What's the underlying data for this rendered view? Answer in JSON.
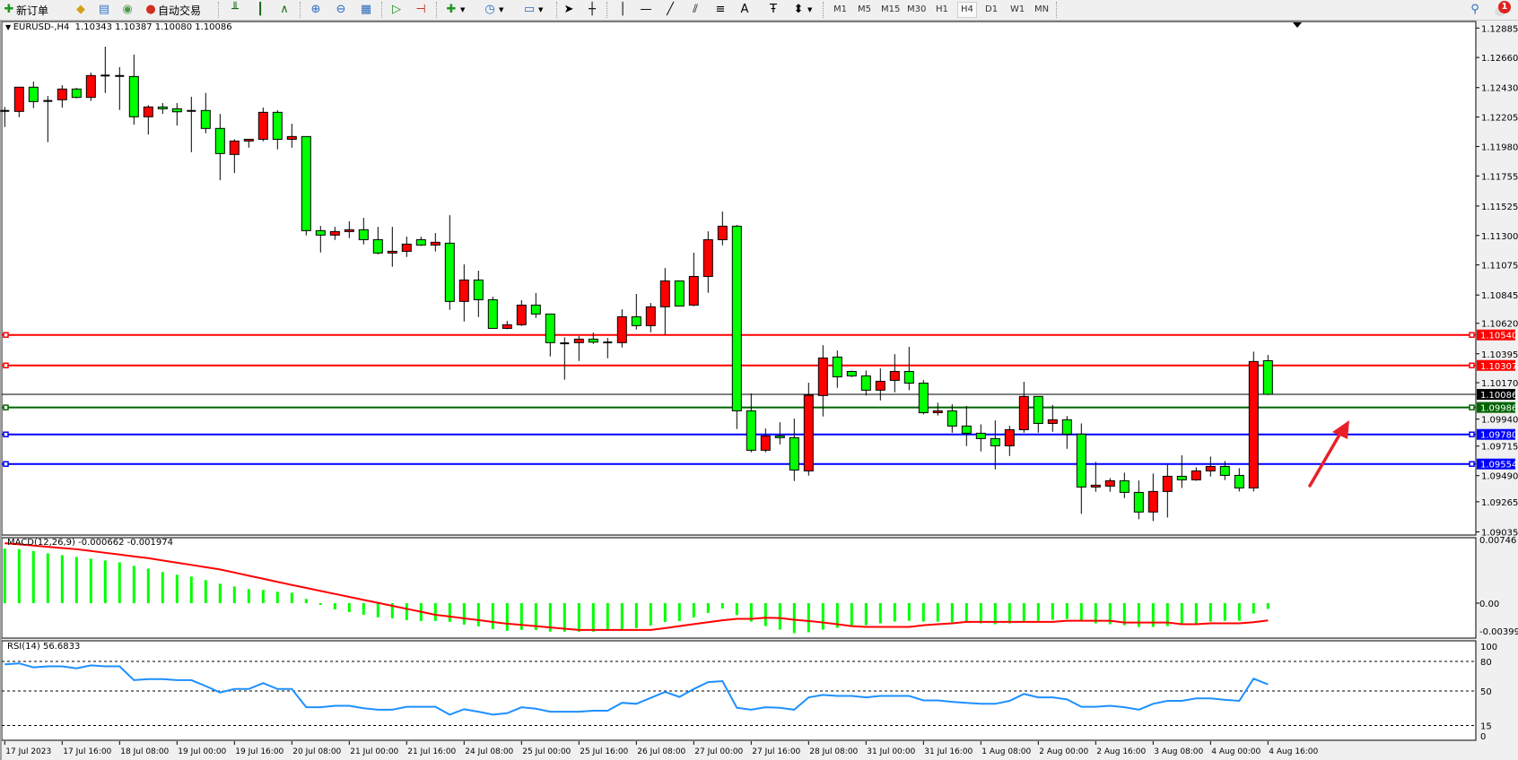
{
  "toolbar": {
    "new_order_label": "新订单",
    "auto_trading_label": "自动交易",
    "timeframes": [
      "M1",
      "M5",
      "M15",
      "M30",
      "H1",
      "H4",
      "D1",
      "W1",
      "MN"
    ],
    "active_timeframe": "H4",
    "notification_count": "1"
  },
  "chart": {
    "symbol_header": "EURUSD-,H4  1.10343 1.10387 1.10080 1.10086",
    "macd_label": "MACD(12,26,9) -0.000662 -0.001974",
    "rsi_label": "RSI(14) 56.6833"
  },
  "colors": {
    "bull_candle": "#ff0000",
    "bear_candle": "#00ff00",
    "macd_histogram": "#00ff00",
    "macd_signal": "#ff0000",
    "rsi_line": "#1e90ff",
    "arrow": "#e8202a"
  },
  "chart_data": [
    {
      "type": "candlestick",
      "ylim": [
        1.09011,
        1.12935
      ],
      "grid": false,
      "price_ticks": [
        "1.12885",
        "1.12660",
        "1.12430",
        "1.12205",
        "1.11980",
        "1.11755",
        "1.11525",
        "1.11300",
        "1.11075",
        "1.10845",
        "1.10620",
        "1.10395",
        "1.10170",
        "1.09940",
        "1.09715",
        "1.09490",
        "1.09265",
        "1.09035"
      ],
      "time_labels": [
        {
          "bar": 0,
          "label": "17 Jul 2023"
        },
        {
          "bar": 4,
          "label": "17 Jul 16:00"
        },
        {
          "bar": 8,
          "label": "18 Jul 08:00"
        },
        {
          "bar": 12,
          "label": "19 Jul 00:00"
        },
        {
          "bar": 16,
          "label": "19 Jul 16:00"
        },
        {
          "bar": 20,
          "label": "20 Jul 08:00"
        },
        {
          "bar": 24,
          "label": "21 Jul 00:00"
        },
        {
          "bar": 28,
          "label": "21 Jul 16:00"
        },
        {
          "bar": 32,
          "label": "24 Jul 08:00"
        },
        {
          "bar": 36,
          "label": "25 Jul 00:00"
        },
        {
          "bar": 40,
          "label": "25 Jul 16:00"
        },
        {
          "bar": 44,
          "label": "26 Jul 08:00"
        },
        {
          "bar": 48,
          "label": "27 Jul 00:00"
        },
        {
          "bar": 52,
          "label": "27 Jul 16:00"
        },
        {
          "bar": 56,
          "label": "28 Jul 08:00"
        },
        {
          "bar": 60,
          "label": "31 Jul 00:00"
        },
        {
          "bar": 64,
          "label": "31 Jul 16:00"
        },
        {
          "bar": 68,
          "label": "1 Aug 08:00"
        },
        {
          "bar": 72,
          "label": "2 Aug 00:00"
        },
        {
          "bar": 76,
          "label": "2 Aug 16:00"
        },
        {
          "bar": 80,
          "label": "3 Aug 08:00"
        },
        {
          "bar": 84,
          "label": "4 Aug 00:00"
        },
        {
          "bar": 88,
          "label": "4 Aug 16:00"
        }
      ],
      "ohlc": [
        [
          1.12252,
          1.12282,
          1.12129,
          1.12252
        ],
        [
          1.12248,
          1.12433,
          1.12204,
          1.12433
        ],
        [
          1.12433,
          1.12476,
          1.12273,
          1.12323
        ],
        [
          1.12328,
          1.12366,
          1.12013,
          1.12328
        ],
        [
          1.12337,
          1.12449,
          1.12277,
          1.12419
        ],
        [
          1.12419,
          1.12428,
          1.12348,
          1.12355
        ],
        [
          1.12355,
          1.12545,
          1.12328,
          1.12522
        ],
        [
          1.12522,
          1.12743,
          1.12389,
          1.12522
        ],
        [
          1.12519,
          1.12586,
          1.12259,
          1.12519
        ],
        [
          1.12515,
          1.12682,
          1.12147,
          1.12207
        ],
        [
          1.12207,
          1.12296,
          1.12072,
          1.12282
        ],
        [
          1.12282,
          1.12312,
          1.12229,
          1.12268
        ],
        [
          1.12268,
          1.12312,
          1.1214,
          1.12245
        ],
        [
          1.12252,
          1.1236,
          1.11937,
          1.12252
        ],
        [
          1.12255,
          1.12389,
          1.12081,
          1.12118
        ],
        [
          1.12118,
          1.12229,
          1.11723,
          1.11926
        ],
        [
          1.11919,
          1.12035,
          1.11777,
          1.12022
        ],
        [
          1.12022,
          1.12035,
          1.11971,
          1.12035
        ],
        [
          1.12035,
          1.12277,
          1.1202,
          1.12241
        ],
        [
          1.12241,
          1.12257,
          1.11958,
          1.12035
        ],
        [
          1.12035,
          1.12154,
          1.11971,
          1.12056
        ],
        [
          1.12056,
          1.12056,
          1.11301,
          1.11337
        ],
        [
          1.11337,
          1.11373,
          1.1117,
          1.11303
        ],
        [
          1.11303,
          1.11366,
          1.11266,
          1.1133
        ],
        [
          1.1133,
          1.11408,
          1.1128,
          1.11344
        ],
        [
          1.11344,
          1.11435,
          1.11232,
          1.11268
        ],
        [
          1.11268,
          1.11366,
          1.11156,
          1.11166
        ],
        [
          1.11166,
          1.11366,
          1.11061,
          1.11179
        ],
        [
          1.11179,
          1.11291,
          1.11136,
          1.11234
        ],
        [
          1.11268,
          1.11291,
          1.1122,
          1.11227
        ],
        [
          1.11227,
          1.11319,
          1.11177,
          1.11248
        ],
        [
          1.11241,
          1.11455,
          1.10732,
          1.10796
        ],
        [
          1.10796,
          1.11079,
          1.10643,
          1.1096
        ],
        [
          1.1096,
          1.11031,
          1.10677,
          1.10809
        ],
        [
          1.10809,
          1.10832,
          1.1059,
          1.1059
        ],
        [
          1.1059,
          1.10647,
          1.10583,
          1.10618
        ],
        [
          1.10618,
          1.10805,
          1.10608,
          1.10768
        ],
        [
          1.10768,
          1.1086,
          1.1067,
          1.107
        ],
        [
          1.107,
          1.107,
          1.10376,
          1.10481
        ],
        [
          1.10476,
          1.10522,
          1.10198,
          1.10476
        ],
        [
          1.10481,
          1.10531,
          1.10341,
          1.10508
        ],
        [
          1.10508,
          1.10558,
          1.10472,
          1.10485
        ],
        [
          1.10483,
          1.10517,
          1.10362,
          1.10483
        ],
        [
          1.10481,
          1.10736,
          1.10444,
          1.10679
        ],
        [
          1.10679,
          1.10853,
          1.10581,
          1.10611
        ],
        [
          1.10611,
          1.10784,
          1.1056,
          1.10755
        ],
        [
          1.10755,
          1.11051,
          1.10542,
          1.10953
        ],
        [
          1.10953,
          1.10953,
          1.10761,
          1.10761
        ],
        [
          1.10768,
          1.11168,
          1.10759,
          1.10987
        ],
        [
          1.10987,
          1.11332,
          1.10862,
          1.11268
        ],
        [
          1.11268,
          1.11483,
          1.11225,
          1.11371
        ],
        [
          1.11371,
          1.1138,
          1.09821,
          1.0996
        ],
        [
          1.0996,
          1.10093,
          1.09643,
          1.09659
        ],
        [
          1.09659,
          1.09825,
          1.09643,
          1.09768
        ],
        [
          1.09768,
          1.09873,
          1.09704,
          1.09755
        ],
        [
          1.09755,
          1.09901,
          1.09424,
          1.09508
        ],
        [
          1.09501,
          1.10175,
          1.09465,
          1.10079
        ],
        [
          1.10077,
          1.10462,
          1.09917,
          1.10364
        ],
        [
          1.10371,
          1.10421,
          1.10136,
          1.1022
        ],
        [
          1.10261,
          1.10268,
          1.10218,
          1.10227
        ],
        [
          1.10227,
          1.10268,
          1.10077,
          1.10118
        ],
        [
          1.10118,
          1.10284,
          1.1004,
          1.10186
        ],
        [
          1.10193,
          1.10393,
          1.10102,
          1.10261
        ],
        [
          1.10261,
          1.10449,
          1.10118,
          1.10172
        ],
        [
          1.10172,
          1.10195,
          1.09933,
          1.09946
        ],
        [
          1.09946,
          1.10022,
          1.09924,
          1.0996
        ],
        [
          1.0996,
          1.1001,
          1.09793,
          1.09844
        ],
        [
          1.09844,
          1.09997,
          1.09691,
          1.09789
        ],
        [
          1.09789,
          1.09857,
          1.0965,
          1.09748
        ],
        [
          1.09748,
          1.09887,
          1.09513,
          1.09693
        ],
        [
          1.09693,
          1.09846,
          1.09615,
          1.09816
        ],
        [
          1.09816,
          1.10182,
          1.09793,
          1.1007
        ],
        [
          1.1007,
          1.1007,
          1.09793,
          1.09864
        ],
        [
          1.09864,
          1.10004,
          1.098,
          1.09892
        ],
        [
          1.09892,
          1.09921,
          1.0967,
          1.09782
        ],
        [
          1.09782,
          1.09864,
          1.09173,
          1.09378
        ],
        [
          1.09378,
          1.0957,
          1.09342,
          1.09392
        ],
        [
          1.09385,
          1.09446,
          1.09342,
          1.09426
        ],
        [
          1.09426,
          1.09488,
          1.09293,
          1.09337
        ],
        [
          1.09337,
          1.09428,
          1.09132,
          1.09187
        ],
        [
          1.09187,
          1.09481,
          1.09118,
          1.09344
        ],
        [
          1.09344,
          1.09547,
          1.09145,
          1.0946
        ],
        [
          1.0946,
          1.0962,
          1.09371,
          1.09433
        ],
        [
          1.09433,
          1.09529,
          1.09426,
          1.09501
        ],
        [
          1.09501,
          1.09611,
          1.09458,
          1.09535
        ],
        [
          1.09535,
          1.09577,
          1.09431,
          1.09467
        ],
        [
          1.09467,
          1.09522,
          1.09344,
          1.09371
        ],
        [
          1.09371,
          1.10412,
          1.09344,
          1.10337
        ],
        [
          1.10343,
          1.10387,
          1.1008,
          1.10086
        ]
      ],
      "levels": [
        {
          "price": 1.1054,
          "label": "1.10540",
          "color": "#ff0000"
        },
        {
          "price": 1.10307,
          "label": "1.10307",
          "color": "#ff0000"
        },
        {
          "price": 1.10086,
          "label": "1.10086",
          "color": "#000000"
        },
        {
          "price": 1.09986,
          "label": "1.09986",
          "color": "#006400"
        },
        {
          "price": 1.0978,
          "label": "1.09780",
          "color": "#0000ff"
        },
        {
          "price": 1.09554,
          "label": "1.09554",
          "color": "#0000ff"
        }
      ]
    },
    {
      "type": "bar+line",
      "name": "MACD(12,26,9)",
      "ylim": [
        -0.003993,
        0.00746
      ],
      "tick_labels": [
        "0.00746",
        "0.00",
        "-0.003993"
      ],
      "histogram": [
        0.00622,
        0.00615,
        0.00595,
        0.00568,
        0.00547,
        0.00527,
        0.00507,
        0.00486,
        0.00466,
        0.00425,
        0.00394,
        0.00354,
        0.00323,
        0.00303,
        0.00262,
        0.00221,
        0.0019,
        0.0016,
        0.0015,
        0.00129,
        0.00119,
        0.00048,
        -0.0002,
        -0.00071,
        -0.00102,
        -0.00133,
        -0.00163,
        -0.00173,
        -0.00194,
        -0.00204,
        -0.00204,
        -0.00214,
        -0.00245,
        -0.00265,
        -0.00296,
        -0.00316,
        -0.00306,
        -0.00306,
        -0.00326,
        -0.00326,
        -0.00326,
        -0.00326,
        -0.00316,
        -0.00306,
        -0.00286,
        -0.00255,
        -0.00214,
        -0.00204,
        -0.00163,
        -0.00112,
        -0.00061,
        -0.00136,
        -0.00211,
        -0.00262,
        -0.00303,
        -0.00343,
        -0.00333,
        -0.00303,
        -0.00282,
        -0.00262,
        -0.00252,
        -0.00231,
        -0.00211,
        -0.00201,
        -0.00211,
        -0.00211,
        -0.00218,
        -0.00221,
        -0.00231,
        -0.00241,
        -0.00231,
        -0.00211,
        -0.00201,
        -0.0019,
        -0.0018,
        -0.00197,
        -0.00231,
        -0.00241,
        -0.00252,
        -0.00272,
        -0.00272,
        -0.00262,
        -0.00241,
        -0.00231,
        -0.00211,
        -0.00201,
        -0.00201,
        -0.00119,
        -0.000662
      ],
      "signal": [
        0.00683,
        0.0067,
        0.00656,
        0.00642,
        0.00629,
        0.00615,
        0.00595,
        0.00574,
        0.00554,
        0.00533,
        0.00513,
        0.00487,
        0.00461,
        0.00436,
        0.0041,
        0.00384,
        0.00349,
        0.00313,
        0.00278,
        0.00242,
        0.00207,
        0.00173,
        0.00139,
        0.00105,
        0.00071,
        0.00037,
        3e-05,
        -0.00031,
        -0.00065,
        -0.00099,
        -0.00133,
        -0.00153,
        -0.00174,
        -0.00194,
        -0.00215,
        -0.00235,
        -0.00249,
        -0.00263,
        -0.00278,
        -0.00292,
        -0.00306,
        -0.00306,
        -0.00306,
        -0.00306,
        -0.00306,
        -0.00306,
        -0.00285,
        -0.00262,
        -0.0024,
        -0.00218,
        -0.00196,
        -0.0018,
        -0.0018,
        -0.00167,
        -0.0017,
        -0.0019,
        -0.00204,
        -0.00221,
        -0.00241,
        -0.00262,
        -0.00272,
        -0.00272,
        -0.00272,
        -0.00272,
        -0.00252,
        -0.00241,
        -0.00231,
        -0.00214,
        -0.00214,
        -0.00214,
        -0.00214,
        -0.00214,
        -0.00214,
        -0.00214,
        -0.00201,
        -0.00201,
        -0.00201,
        -0.00201,
        -0.00221,
        -0.00221,
        -0.00221,
        -0.00221,
        -0.00241,
        -0.00241,
        -0.00231,
        -0.00231,
        -0.00231,
        -0.00218,
        -0.001974
      ]
    },
    {
      "type": "line",
      "name": "RSI(14)",
      "ylim": [
        0,
        100
      ],
      "tick_labels": [
        "100",
        "80",
        "50",
        "15",
        "0"
      ],
      "levels": [
        80,
        50,
        15
      ],
      "values": [
        77,
        78,
        74,
        75,
        75,
        73,
        76,
        75,
        75,
        61,
        62,
        62,
        61,
        61,
        55,
        48.5,
        52,
        52,
        58,
        52,
        52,
        33.5,
        33.5,
        35,
        35,
        32.5,
        31,
        31,
        34,
        34,
        34,
        26,
        31.5,
        29,
        26,
        27.5,
        33.5,
        32,
        29,
        29,
        29,
        30,
        30,
        38,
        37,
        43,
        49,
        44,
        52,
        59,
        60,
        33,
        31,
        33.5,
        33,
        31,
        43.5,
        46,
        45,
        45,
        43.5,
        45,
        45,
        45,
        40.5,
        40.5,
        39,
        38,
        37,
        37,
        40,
        47,
        43.5,
        43.5,
        41.5,
        34,
        34,
        35,
        33.5,
        31,
        37,
        40,
        40,
        42.5,
        42.5,
        41,
        40,
        62.5,
        56.6833
      ]
    }
  ]
}
